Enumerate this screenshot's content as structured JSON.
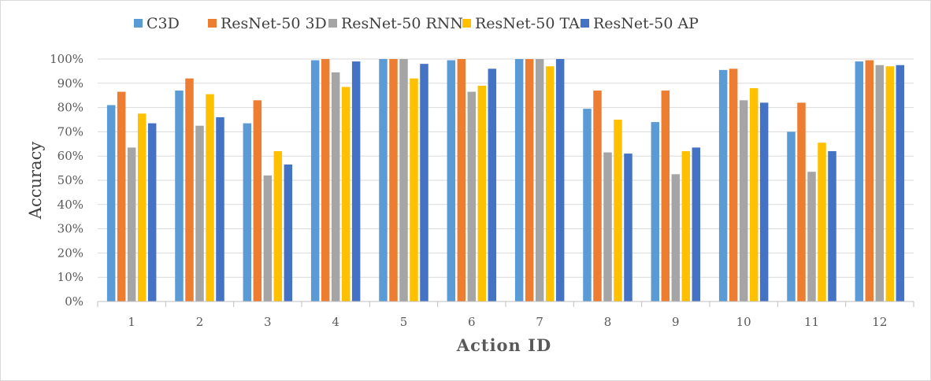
{
  "chart_data": {
    "type": "bar",
    "title": "",
    "xlabel": "Action ID",
    "ylabel": "Accuracy",
    "ylim": [
      0,
      1
    ],
    "yticks": [
      "0%",
      "10%",
      "20%",
      "30%",
      "40%",
      "50%",
      "60%",
      "70%",
      "80%",
      "90%",
      "100%"
    ],
    "grid": true,
    "legend_position": "top",
    "categories": [
      "1",
      "2",
      "3",
      "4",
      "5",
      "6",
      "7",
      "8",
      "9",
      "10",
      "11",
      "12"
    ],
    "series": [
      {
        "name": "C3D",
        "color": "#5b9bd5",
        "values": [
          0.81,
          0.87,
          0.735,
          0.995,
          1.0,
          0.995,
          1.0,
          0.795,
          0.74,
          0.955,
          0.7,
          0.99
        ]
      },
      {
        "name": "ResNet-50 3D",
        "color": "#ed7d31",
        "values": [
          0.865,
          0.92,
          0.83,
          1.0,
          1.0,
          1.0,
          1.0,
          0.87,
          0.87,
          0.96,
          0.82,
          0.995
        ]
      },
      {
        "name": "ResNet-50 RNN",
        "color": "#a5a5a5",
        "values": [
          0.635,
          0.725,
          0.52,
          0.945,
          1.0,
          0.865,
          1.0,
          0.615,
          0.525,
          0.83,
          0.535,
          0.975
        ]
      },
      {
        "name": "ResNet-50 TA",
        "color": "#ffc000",
        "values": [
          0.775,
          0.855,
          0.62,
          0.885,
          0.92,
          0.89,
          0.97,
          0.75,
          0.62,
          0.88,
          0.655,
          0.97
        ]
      },
      {
        "name": "ResNet-50 AP",
        "color": "#4472c4",
        "values": [
          0.735,
          0.76,
          0.565,
          0.99,
          0.98,
          0.96,
          1.0,
          0.61,
          0.635,
          0.82,
          0.62,
          0.975
        ]
      }
    ]
  }
}
